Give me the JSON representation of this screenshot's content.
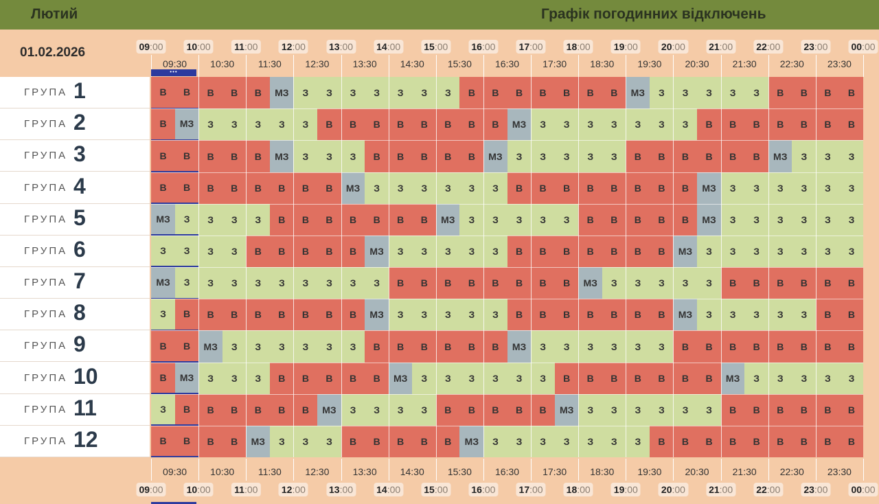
{
  "header": {
    "month": "Лютий",
    "title": "Графік погодинних відключень"
  },
  "date": "01.02.2026",
  "current_marker": "•••",
  "hours": [
    "09",
    "10",
    "11",
    "12",
    "13",
    "14",
    "15",
    "16",
    "17",
    "18",
    "19",
    "20",
    "21",
    "22",
    "23",
    "00"
  ],
  "hour_suffix": ":00",
  "half_hours": [
    "09:30",
    "10:30",
    "11:30",
    "12:30",
    "13:30",
    "14:30",
    "15:30",
    "16:30",
    "17:30",
    "18:30",
    "19:30",
    "20:30",
    "21:30",
    "22:30",
    "23:30"
  ],
  "group_label": "ГРУПА",
  "groups": [
    {
      "num": "1",
      "cells": [
        "В",
        "В",
        "В",
        "В",
        "В",
        "МЗ",
        "З",
        "З",
        "З",
        "З",
        "З",
        "З",
        "З",
        "В",
        "В",
        "В",
        "В",
        "В",
        "В",
        "В",
        "МЗ",
        "З",
        "З",
        "З",
        "З",
        "З",
        "В",
        "В",
        "В",
        "В"
      ]
    },
    {
      "num": "2",
      "cells": [
        "В",
        "МЗ",
        "З",
        "З",
        "З",
        "З",
        "З",
        "В",
        "В",
        "В",
        "В",
        "В",
        "В",
        "В",
        "В",
        "МЗ",
        "З",
        "З",
        "З",
        "З",
        "З",
        "З",
        "З",
        "В",
        "В",
        "В",
        "В",
        "В",
        "В",
        "В"
      ]
    },
    {
      "num": "3",
      "cells": [
        "В",
        "В",
        "В",
        "В",
        "В",
        "МЗ",
        "З",
        "З",
        "З",
        "В",
        "В",
        "В",
        "В",
        "В",
        "МЗ",
        "З",
        "З",
        "З",
        "З",
        "З",
        "В",
        "В",
        "В",
        "В",
        "В",
        "В",
        "МЗ",
        "З",
        "З",
        "З"
      ]
    },
    {
      "num": "4",
      "cells": [
        "В",
        "В",
        "В",
        "В",
        "В",
        "В",
        "В",
        "В",
        "МЗ",
        "З",
        "З",
        "З",
        "З",
        "З",
        "З",
        "В",
        "В",
        "В",
        "В",
        "В",
        "В",
        "В",
        "В",
        "МЗ",
        "З",
        "З",
        "З",
        "З",
        "З",
        "З"
      ]
    },
    {
      "num": "5",
      "cells": [
        "МЗ",
        "З",
        "З",
        "З",
        "З",
        "В",
        "В",
        "В",
        "В",
        "В",
        "В",
        "В",
        "МЗ",
        "З",
        "З",
        "З",
        "З",
        "З",
        "В",
        "В",
        "В",
        "В",
        "В",
        "МЗ",
        "З",
        "З",
        "З",
        "З",
        "З",
        "З"
      ]
    },
    {
      "num": "6",
      "cells": [
        "З",
        "З",
        "З",
        "З",
        "В",
        "В",
        "В",
        "В",
        "В",
        "МЗ",
        "З",
        "З",
        "З",
        "З",
        "З",
        "В",
        "В",
        "В",
        "В",
        "В",
        "В",
        "В",
        "МЗ",
        "З",
        "З",
        "З",
        "З",
        "З",
        "З",
        "З"
      ]
    },
    {
      "num": "7",
      "cells": [
        "МЗ",
        "З",
        "З",
        "З",
        "З",
        "З",
        "З",
        "З",
        "З",
        "З",
        "В",
        "В",
        "В",
        "В",
        "В",
        "В",
        "В",
        "В",
        "МЗ",
        "З",
        "З",
        "З",
        "З",
        "З",
        "В",
        "В",
        "В",
        "В",
        "В",
        "В"
      ]
    },
    {
      "num": "8",
      "cells": [
        "З",
        "В",
        "В",
        "В",
        "В",
        "В",
        "В",
        "В",
        "В",
        "МЗ",
        "З",
        "З",
        "З",
        "З",
        "З",
        "В",
        "В",
        "В",
        "В",
        "В",
        "В",
        "В",
        "МЗ",
        "З",
        "З",
        "З",
        "З",
        "З",
        "В",
        "В"
      ]
    },
    {
      "num": "9",
      "cells": [
        "В",
        "В",
        "МЗ",
        "З",
        "З",
        "З",
        "З",
        "З",
        "З",
        "В",
        "В",
        "В",
        "В",
        "В",
        "В",
        "МЗ",
        "З",
        "З",
        "З",
        "З",
        "З",
        "З",
        "В",
        "В",
        "В",
        "В",
        "В",
        "В",
        "В",
        "В"
      ]
    },
    {
      "num": "10",
      "cells": [
        "В",
        "МЗ",
        "З",
        "З",
        "З",
        "В",
        "В",
        "В",
        "В",
        "В",
        "МЗ",
        "З",
        "З",
        "З",
        "З",
        "З",
        "З",
        "В",
        "В",
        "В",
        "В",
        "В",
        "В",
        "В",
        "МЗ",
        "З",
        "З",
        "З",
        "З",
        "З"
      ]
    },
    {
      "num": "11",
      "cells": [
        "З",
        "В",
        "В",
        "В",
        "В",
        "В",
        "В",
        "МЗ",
        "З",
        "З",
        "З",
        "З",
        "В",
        "В",
        "В",
        "В",
        "В",
        "МЗ",
        "З",
        "З",
        "З",
        "З",
        "З",
        "З",
        "В",
        "В",
        "В",
        "В",
        "В",
        "В"
      ]
    },
    {
      "num": "12",
      "cells": [
        "В",
        "В",
        "В",
        "В",
        "МЗ",
        "З",
        "З",
        "З",
        "В",
        "В",
        "В",
        "В",
        "В",
        "МЗ",
        "З",
        "З",
        "З",
        "З",
        "З",
        "З",
        "З",
        "В",
        "В",
        "В",
        "В",
        "В",
        "В",
        "В",
        "В",
        "В"
      ]
    }
  ],
  "colors": {
    "off": "#e07060",
    "on": "#cfdda0",
    "maybe": "#a8b7bd",
    "header": "#748a3d",
    "background": "#f5cba7",
    "current": "#2c3a9e"
  }
}
